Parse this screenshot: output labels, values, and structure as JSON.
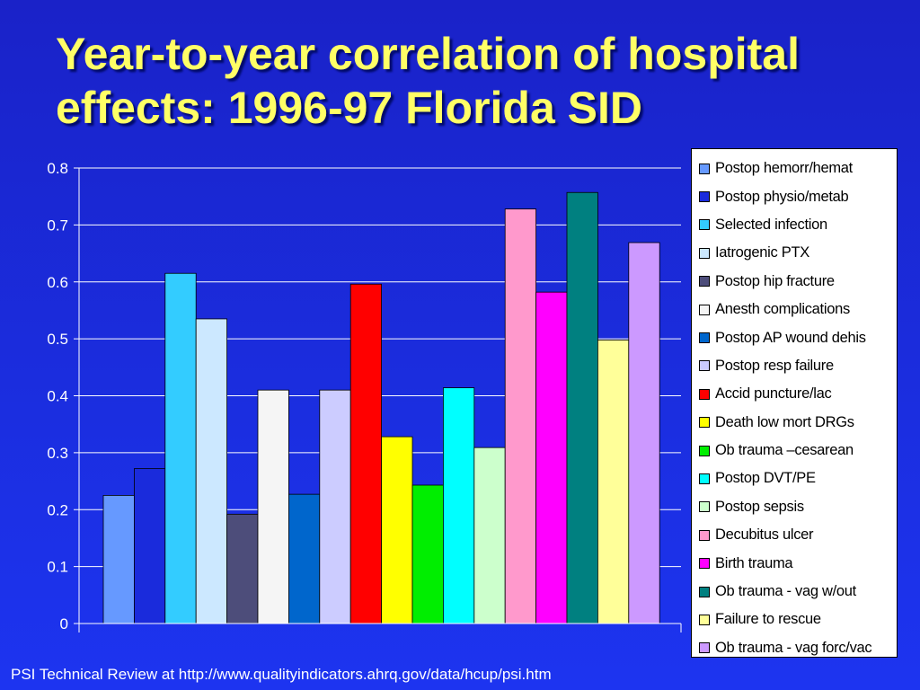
{
  "title": "Year-to-year correlation of hospital effects: 1996-97 Florida SID",
  "footer": "PSI Technical Review at http://www.qualityindicators.ahrq.gov/data/hcup/psi.htm",
  "chart_data": {
    "type": "bar",
    "title": "Year-to-year correlation of hospital effects: 1996-97 Florida SID",
    "xlabel": "",
    "ylabel": "",
    "ylim": [
      0,
      0.8
    ],
    "yticks": [
      "0",
      "0.1",
      "0.2",
      "0.3",
      "0.4",
      "0.5",
      "0.6",
      "0.7",
      "0.8"
    ],
    "grid": true,
    "legend_position": "right",
    "series": [
      {
        "name": "Postop hemorr/hemat",
        "value": 0.225,
        "color": "#6699ff"
      },
      {
        "name": "Postop physio/metab",
        "value": 0.272,
        "color": "#1a2bdc"
      },
      {
        "name": "Selected infection",
        "value": 0.615,
        "color": "#33ccff"
      },
      {
        "name": "Iatrogenic PTX",
        "value": 0.535,
        "color": "#cce8ff"
      },
      {
        "name": "Postop hip fracture",
        "value": 0.192,
        "color": "#4d4d7a"
      },
      {
        "name": "Anesth complications",
        "value": 0.41,
        "color": "#f5f5f5"
      },
      {
        "name": "Postop AP wound dehis",
        "value": 0.227,
        "color": "#0066cc"
      },
      {
        "name": "Postop resp failure",
        "value": 0.41,
        "color": "#ccccff"
      },
      {
        "name": "Accid puncture/lac",
        "value": 0.596,
        "color": "#ff0000"
      },
      {
        "name": "Death low mort DRGs",
        "value": 0.328,
        "color": "#ffff00"
      },
      {
        "name": "Ob trauma –cesarean",
        "value": 0.243,
        "color": "#00ee00"
      },
      {
        "name": "Postop DVT/PE",
        "value": 0.414,
        "color": "#00ffff"
      },
      {
        "name": "Postop sepsis",
        "value": 0.309,
        "color": "#ccffcc"
      },
      {
        "name": "Decubitus ulcer",
        "value": 0.728,
        "color": "#ff99cc"
      },
      {
        "name": "Birth trauma",
        "value": 0.582,
        "color": "#ff00ff"
      },
      {
        "name": "Ob trauma - vag w/out",
        "value": 0.757,
        "color": "#008080"
      },
      {
        "name": "Failure to rescue",
        "value": 0.498,
        "color": "#ffff99"
      },
      {
        "name": "Ob trauma - vag forc/vac",
        "value": 0.669,
        "color": "#cc99ff"
      }
    ]
  }
}
